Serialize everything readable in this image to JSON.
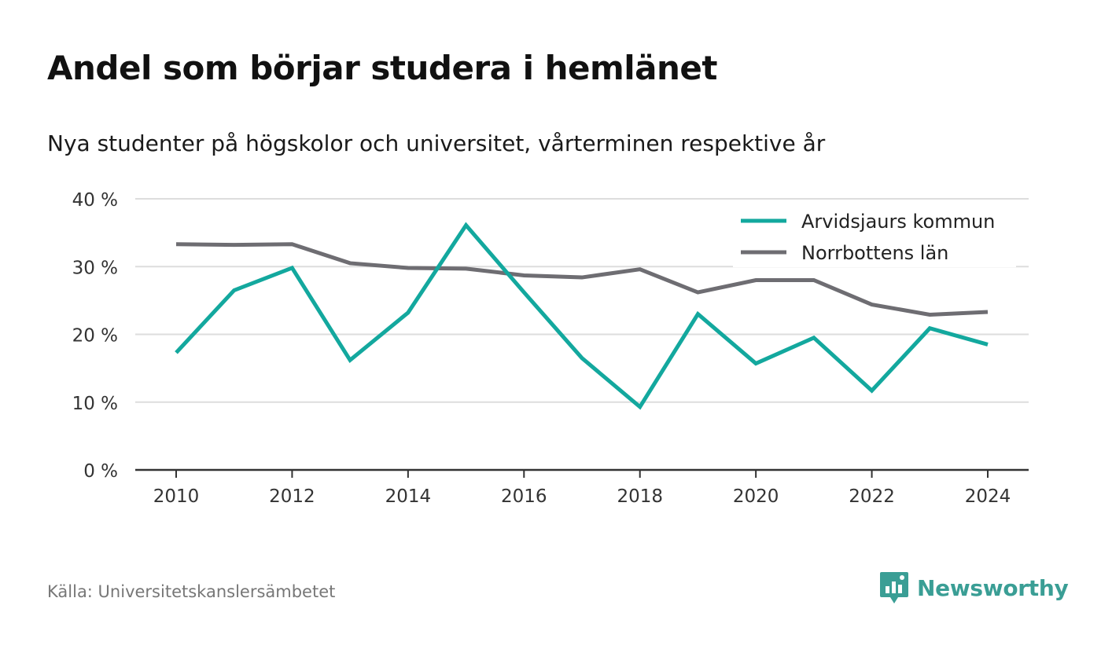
{
  "header": {
    "title": "Andel som börjar studera i hemlänet",
    "subtitle": "Nya studenter på högskolor och universitet, vårterminen respektive år"
  },
  "footer": {
    "source": "Källa: Universitetskanslersämbetet",
    "brand": "Newsworthy",
    "brand_icon": "bar-chart-speech-bubble-icon"
  },
  "colors": {
    "arvidsjaur": "#13a89e",
    "norrbotten": "#6e6d72",
    "grid": "#dddddd",
    "axis": "#333333",
    "brand": "#3a9e95"
  },
  "chart_data": {
    "type": "line",
    "x": [
      2010,
      2011,
      2012,
      2013,
      2014,
      2015,
      2016,
      2017,
      2018,
      2019,
      2020,
      2021,
      2022,
      2023,
      2024
    ],
    "series": [
      {
        "name": "Arvidsjaurs kommun",
        "color": "#13a89e",
        "values": [
          17.3,
          26.5,
          29.8,
          16.2,
          23.2,
          36.1,
          26.2,
          16.5,
          9.3,
          23.0,
          15.7,
          19.5,
          11.7,
          20.9,
          18.5
        ]
      },
      {
        "name": "Norrbottens län",
        "color": "#6e6d72",
        "values": [
          33.3,
          33.2,
          33.3,
          30.5,
          29.8,
          29.7,
          28.7,
          28.4,
          29.6,
          26.2,
          28.0,
          28.0,
          24.4,
          22.9,
          23.3
        ]
      }
    ],
    "ylim": [
      0,
      40
    ],
    "yticks": [
      0,
      10,
      20,
      30,
      40
    ],
    "ytick_labels": [
      "0 %",
      "10 %",
      "20 %",
      "30 %",
      "40 %"
    ],
    "xticks": [
      2010,
      2012,
      2014,
      2016,
      2018,
      2020,
      2022,
      2024
    ],
    "xtick_labels": [
      "2010",
      "2012",
      "2014",
      "2016",
      "2018",
      "2020",
      "2022",
      "2024"
    ],
    "grid": true,
    "legend_position": "top-right"
  }
}
